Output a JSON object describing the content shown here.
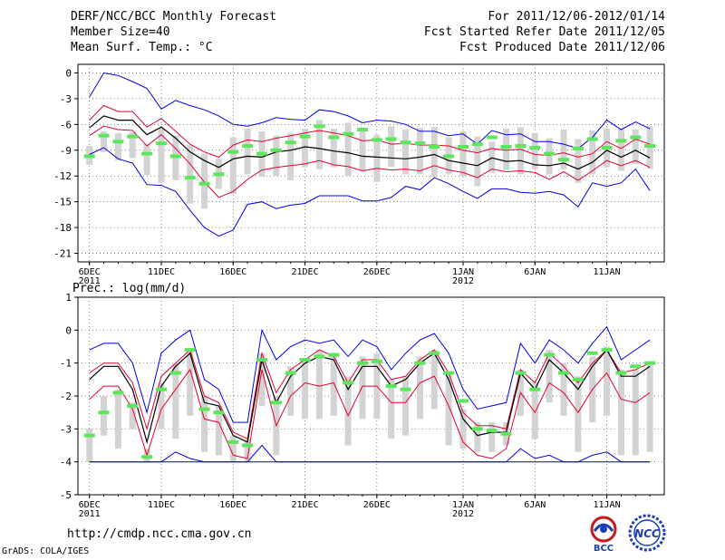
{
  "header": {
    "title": "DERF/NCC/BCC Monthly Forecast",
    "member_size": "Member Size=40",
    "variable": "Mean Surf. Temp.: °C",
    "for_range": "For 2011/12/06-2012/01/14",
    "started": "Fcst Started Refer Date 2011/12/05",
    "produced": "Fcst Produced Date 2011/12/06"
  },
  "footer": {
    "url": "http://cmdp.ncc.cma.gov.cn",
    "credit": "GrADS: COLA/IGES",
    "bcc_logo_text": "BCC",
    "ncc_logo_text": "NCC"
  },
  "colors": {
    "envelope": "#0000e6",
    "percentile": "#e6002d",
    "mean": "#000000",
    "box": "#d3d3d3",
    "marker": "#5ce65c",
    "grid": "#555555"
  },
  "chart_data": [
    {
      "type": "line",
      "title": "Mean Surf. Temp.: °C",
      "ylim": [
        -22,
        1
      ],
      "yticks": [
        0,
        -3,
        -6,
        -9,
        -12,
        -15,
        -18,
        -21
      ],
      "xtick_labels": [
        {
          "day": 1,
          "label": "6DEC",
          "sub": "2011"
        },
        {
          "day": 6,
          "label": "11DEC",
          "sub": ""
        },
        {
          "day": 11,
          "label": "16DEC",
          "sub": ""
        },
        {
          "day": 16,
          "label": "21DEC",
          "sub": ""
        },
        {
          "day": 21,
          "label": "26DEC",
          "sub": ""
        },
        {
          "day": 27,
          "label": "1JAN",
          "sub": "2012"
        },
        {
          "day": 32,
          "label": "6JAN",
          "sub": ""
        },
        {
          "day": 37,
          "label": "11JAN",
          "sub": ""
        }
      ],
      "x": [
        1,
        2,
        3,
        4,
        5,
        6,
        7,
        8,
        9,
        10,
        11,
        12,
        13,
        14,
        15,
        16,
        17,
        18,
        19,
        20,
        21,
        22,
        23,
        24,
        25,
        26,
        27,
        28,
        29,
        30,
        31,
        32,
        33,
        34,
        35,
        36,
        37,
        38,
        39,
        40
      ],
      "series": [
        {
          "name": "max",
          "values": [
            -2.8,
            0,
            -0.3,
            -1,
            -1.8,
            -4.2,
            -3.2,
            -3.8,
            -4.3,
            -5,
            -6,
            -6.2,
            -5.8,
            -5.2,
            -5.4,
            -5.5,
            -4.3,
            -4.5,
            -5,
            -5.8,
            -5.5,
            -5.6,
            -6,
            -6.8,
            -6.8,
            -7.3,
            -7.1,
            -8.3,
            -6.7,
            -7.2,
            -7.1,
            -8,
            -8,
            -8.3,
            -8.8,
            -7.5,
            -5.5,
            -6.6,
            -5.7,
            -6.5
          ]
        },
        {
          "name": "p90",
          "values": [
            -5.5,
            -3.8,
            -4.5,
            -4.5,
            -6.3,
            -5.3,
            -6.8,
            -8.3,
            -9.2,
            -9.8,
            -8.4,
            -7.8,
            -8,
            -7.6,
            -7.3,
            -7,
            -6.7,
            -7,
            -7.3,
            -7.9,
            -7.8,
            -8.3,
            -8.2,
            -8.4,
            -8.4,
            -8.5,
            -9,
            -9.3,
            -8.8,
            -9,
            -8.9,
            -9.5,
            -9.6,
            -9.3,
            -9.8,
            -9.4,
            -8,
            -8.8,
            -7.7,
            -8.3
          ]
        },
        {
          "name": "mean",
          "values": [
            -6.4,
            -5,
            -5.5,
            -5.5,
            -7.2,
            -6.3,
            -7.6,
            -9.2,
            -10.2,
            -11,
            -10,
            -9.7,
            -9.8,
            -9.2,
            -9,
            -8.6,
            -8.8,
            -9.1,
            -9.3,
            -9.7,
            -9.8,
            -9.9,
            -10,
            -9.8,
            -9.5,
            -10.2,
            -10.5,
            -10.8,
            -9.9,
            -10.3,
            -10.2,
            -10.7,
            -10.8,
            -10.5,
            -11.2,
            -10.4,
            -9,
            -9.8,
            -9,
            -9.9
          ]
        },
        {
          "name": "p10",
          "values": [
            -7.3,
            -6.2,
            -6.6,
            -6.7,
            -8.5,
            -7.2,
            -8.8,
            -10.6,
            -12.7,
            -14.5,
            -13.8,
            -12.4,
            -11.3,
            -11,
            -10.8,
            -10.6,
            -10.2,
            -10.7,
            -10.9,
            -11.4,
            -11.1,
            -11.3,
            -11.2,
            -11.4,
            -10.8,
            -11.3,
            -11.6,
            -12.2,
            -11.2,
            -11.5,
            -11.4,
            -11.6,
            -12.4,
            -11.5,
            -12.5,
            -11.4,
            -10.2,
            -10.8,
            -10.2,
            -11
          ]
        },
        {
          "name": "min",
          "values": [
            -9.5,
            -8.7,
            -10,
            -10.5,
            -13,
            -13.1,
            -13.8,
            -16,
            -18,
            -19,
            -18.3,
            -15.3,
            -15,
            -15.8,
            -15.4,
            -15.2,
            -14.3,
            -14.3,
            -14.3,
            -14.9,
            -14.9,
            -14.5,
            -13.2,
            -13.6,
            -12.2,
            -12.9,
            -13.8,
            -14.6,
            -13.5,
            -13.5,
            -13.9,
            -14,
            -13.8,
            -14.2,
            -15.6,
            -12.8,
            -13.2,
            -12.8,
            -11.2,
            -13.7
          ]
        }
      ],
      "box_high": [
        -8.5,
        -6.8,
        -7,
        -6.9,
        -8.3,
        -6.4,
        -7.3,
        -8.4,
        -9.4,
        -10,
        -7.5,
        -6.5,
        -6.8,
        -7.3,
        -7,
        -6.5,
        -5.5,
        -6.5,
        -5.8,
        -6.5,
        -7.2,
        -6.2,
        -6.6,
        -6.4,
        -6.3,
        -7.5,
        -6.8,
        -7.4,
        -8,
        -6.5,
        -6.3,
        -7,
        -7.6,
        -6.6,
        -7.7,
        -6.7,
        -6.5,
        -6.5,
        -6.6,
        -6.2
      ],
      "box_low": [
        -10.7,
        -9.2,
        -10.2,
        -9.9,
        -11.9,
        -12.8,
        -12.5,
        -15.2,
        -15.8,
        -13.5,
        -14.1,
        -11.8,
        -12.1,
        -12,
        -12.5,
        -11,
        -11.2,
        -11,
        -12,
        -11.4,
        -12.7,
        -10.9,
        -11.8,
        -11.8,
        -12.1,
        -11.8,
        -12,
        -13.2,
        -11.6,
        -11.3,
        -11.8,
        -11.2,
        -11.8,
        -11.2,
        -12.8,
        -11.8,
        -11,
        -11.4,
        -10.6,
        -11.2
      ],
      "markers": [
        -9.7,
        -7.3,
        -8,
        -7.4,
        -9.4,
        -8.2,
        -9.7,
        -12.2,
        -12.9,
        -11.8,
        -9.2,
        -8.5,
        -9.4,
        -9,
        -8.1,
        -7.4,
        -6.2,
        -7.5,
        -7.1,
        -6.6,
        -7.8,
        -7.7,
        -8.1,
        -8.2,
        -8.6,
        -9.7,
        -8.6,
        -8.3,
        -7.5,
        -8.6,
        -8.5,
        -8.7,
        -9.4,
        -10.1,
        -8.8,
        -7.7,
        -8.7,
        -7.9,
        -7.5,
        -8.5
      ]
    },
    {
      "type": "line",
      "title": "Prec.: log(mm/d)",
      "ylim": [
        -5,
        1
      ],
      "yticks": [
        1,
        0,
        -1,
        -2,
        -3,
        -4,
        -5
      ],
      "xtick_labels": [
        {
          "day": 1,
          "label": "6DEC",
          "sub": "2011"
        },
        {
          "day": 6,
          "label": "11DEC",
          "sub": ""
        },
        {
          "day": 11,
          "label": "16DEC",
          "sub": ""
        },
        {
          "day": 16,
          "label": "21DEC",
          "sub": ""
        },
        {
          "day": 21,
          "label": "26DEC",
          "sub": ""
        },
        {
          "day": 27,
          "label": "1JAN",
          "sub": "2012"
        },
        {
          "day": 32,
          "label": "6JAN",
          "sub": ""
        },
        {
          "day": 37,
          "label": "11JAN",
          "sub": ""
        }
      ],
      "x": [
        1,
        2,
        3,
        4,
        5,
        6,
        7,
        8,
        9,
        10,
        11,
        12,
        13,
        14,
        15,
        16,
        17,
        18,
        19,
        20,
        21,
        22,
        23,
        24,
        25,
        26,
        27,
        28,
        29,
        30,
        31,
        32,
        33,
        34,
        35,
        36,
        37,
        38,
        39,
        40
      ],
      "series": [
        {
          "name": "max",
          "values": [
            -0.6,
            -0.4,
            -0.4,
            -1,
            -2.5,
            -0.7,
            -0.3,
            0,
            -1.5,
            -1.8,
            -2.8,
            -2.8,
            0,
            -0.9,
            -0.5,
            -0.3,
            -0.4,
            -0.3,
            -0.8,
            -0.3,
            -0.5,
            -1.2,
            -0.7,
            -0.3,
            -0.1,
            -0.7,
            -1.8,
            -2.4,
            -2.3,
            -2.2,
            -0.4,
            -1,
            -0.3,
            -0.6,
            -1,
            -0.4,
            0.1,
            -0.9,
            -0.6,
            -0.3
          ]
        },
        {
          "name": "p90",
          "values": [
            -1.3,
            -1,
            -1,
            -1.6,
            -3,
            -1.4,
            -1,
            -0.6,
            -2,
            -2.2,
            -3.1,
            -3.3,
            -0.7,
            -1.9,
            -1.2,
            -0.9,
            -0.6,
            -0.8,
            -1.6,
            -0.9,
            -0.9,
            -1.5,
            -1.4,
            -0.9,
            -0.6,
            -1.3,
            -2.5,
            -2.9,
            -2.9,
            -3,
            -1.2,
            -1.6,
            -0.7,
            -1.1,
            -1.6,
            -1,
            -0.6,
            -1.3,
            -1.2,
            -1
          ]
        },
        {
          "name": "mean",
          "values": [
            -1.5,
            -1.1,
            -1.1,
            -1.8,
            -3.4,
            -1.7,
            -1.1,
            -0.7,
            -2.2,
            -2.3,
            -3.2,
            -3.4,
            -0.9,
            -2.2,
            -1.4,
            -1,
            -0.8,
            -0.9,
            -1.8,
            -1.1,
            -1.1,
            -1.7,
            -1.5,
            -1,
            -0.7,
            -1.5,
            -2.7,
            -3.2,
            -3.1,
            -3.1,
            -1.3,
            -1.8,
            -0.9,
            -1.3,
            -1.8,
            -1.1,
            -0.6,
            -1.4,
            -1.4,
            -1.1
          ]
        },
        {
          "name": "p10",
          "values": [
            -2.1,
            -1.7,
            -1.7,
            -2.4,
            -3.8,
            -2.4,
            -1.8,
            -1.2,
            -2.7,
            -2.8,
            -3.8,
            -3.9,
            -1.2,
            -2.9,
            -2,
            -1.6,
            -1.7,
            -1.6,
            -2.6,
            -1.7,
            -1.7,
            -2.2,
            -2.2,
            -1.6,
            -1.4,
            -2.3,
            -3.4,
            -3.8,
            -3.9,
            -3.6,
            -1.9,
            -2.5,
            -1.6,
            -1.9,
            -2.5,
            -1.8,
            -1.3,
            -2.1,
            -2.2,
            -1.9
          ]
        },
        {
          "name": "min",
          "values": [
            -4,
            -4,
            -4,
            -4,
            -4,
            -4,
            -3.7,
            -3.9,
            -4,
            -4,
            -4,
            -4,
            -3.5,
            -4,
            -4,
            -4,
            -4,
            -4,
            -4,
            -4,
            -4,
            -4,
            -4,
            -4,
            -4,
            -4,
            -4,
            -4,
            -4,
            -4,
            -3.6,
            -3.9,
            -3.8,
            -4,
            -4,
            -3.8,
            -3.7,
            -4,
            -4,
            -4
          ]
        },
        {
          "name": "baseline",
          "values": [
            -4,
            -4,
            -4,
            -4,
            -4,
            -4,
            -4,
            -4,
            -4,
            -4,
            -4,
            -4,
            -4,
            -4,
            -4,
            -4,
            -4,
            -4,
            -4,
            -4,
            -4,
            -4,
            -4,
            -4,
            -4,
            -4,
            -4,
            -4,
            -4,
            -4,
            -4,
            -4,
            -4,
            -4,
            -4,
            -4,
            -4,
            -4,
            -4,
            -4
          ]
        }
      ],
      "box_high": [
        -3,
        -2,
        -1.8,
        -2.2,
        -3.6,
        -1.6,
        -1,
        -0.6,
        -2,
        -2.3,
        -3.2,
        -3.3,
        -0.7,
        -2,
        -1.1,
        -0.9,
        -0.6,
        -0.7,
        -1.4,
        -0.8,
        -0.7,
        -1.5,
        -1.4,
        -0.8,
        -0.6,
        -1.3,
        -2.4,
        -2.8,
        -2.8,
        -2.8,
        -1.2,
        -1.6,
        -0.6,
        -1,
        -1.4,
        -0.8,
        -0.5,
        -1.2,
        -1.2,
        -1
      ],
      "box_low": [
        -4,
        -3.2,
        -3.6,
        -3,
        -4,
        -3,
        -3.3,
        -2.6,
        -3.7,
        -3.8,
        -4,
        -4,
        -2.3,
        -3.8,
        -2.6,
        -2.7,
        -2.7,
        -2.6,
        -3.5,
        -2.7,
        -2.7,
        -3.3,
        -3.2,
        -2.7,
        -2.4,
        -3.5,
        -3.6,
        -3.7,
        -3.7,
        -3.5,
        -2.6,
        -3.3,
        -2.2,
        -2.6,
        -3.7,
        -2.8,
        -2.6,
        -3.8,
        -3.8,
        -3.7
      ],
      "markers": [
        -3.2,
        -2.5,
        -1.9,
        -2.3,
        -3.85,
        -1.8,
        -1.3,
        -0.6,
        -2.4,
        -2.5,
        -3.4,
        -3.5,
        -0.9,
        -2.2,
        -1.3,
        -0.9,
        -0.8,
        -0.75,
        -1.6,
        -1,
        -0.95,
        -1.7,
        -1.8,
        -1,
        -0.7,
        -1.3,
        -2.15,
        -3,
        -3.05,
        -3.15,
        -1.3,
        -1.8,
        -0.75,
        -1.3,
        -1.5,
        -0.7,
        -0.6,
        -1.3,
        -1.1,
        -1
      ]
    }
  ]
}
